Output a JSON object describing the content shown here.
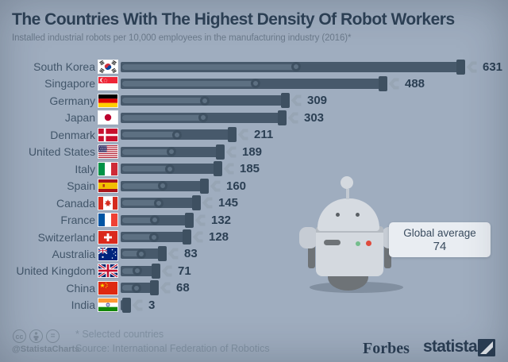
{
  "header": {
    "title": "The Countries With The Highest Density Of Robot Workers",
    "subtitle": "Installed industrial robots per 10,000 employees in the manufacturing industry (2016)*"
  },
  "chart_data": {
    "type": "bar",
    "orientation": "horizontal",
    "title": "The Countries With The Highest Density Of Robot Workers",
    "subtitle": "Installed industrial robots per 10,000 employees in the manufacturing industry (2016)*",
    "categories": [
      "South Korea",
      "Singapore",
      "Germany",
      "Japan",
      "Denmark",
      "United States",
      "Italy",
      "Spain",
      "Canada",
      "France",
      "Switzerland",
      "Australia",
      "United Kingdom",
      "China",
      "India"
    ],
    "values": [
      631,
      488,
      309,
      303,
      211,
      189,
      185,
      160,
      145,
      132,
      128,
      83,
      71,
      68,
      3
    ],
    "flags": [
      "kr",
      "sg",
      "de",
      "jp",
      "dk",
      "us",
      "it",
      "es",
      "ca",
      "fr",
      "ch",
      "au",
      "gb",
      "cn",
      "in"
    ],
    "xlim": [
      0,
      650
    ],
    "grid": false,
    "legend": null,
    "annotation": {
      "label": "Global average",
      "value": "74"
    },
    "bar_color": "#47596b",
    "bar_piston_color": "#5d7082",
    "bar_cap_color": "#3e5061",
    "claw_color": "#97a5b4"
  },
  "footer": {
    "icons": [
      "cc-icon",
      "attribution-icon",
      "no-derivatives-icon"
    ],
    "cc_glyph": "cc",
    "nd_glyph": "=",
    "handle": "@StatistaCharts",
    "footnote": "* Selected countries",
    "source": "Source: International Federation of Robotics",
    "brand_forbes": "Forbes",
    "brand_statista": "statista"
  },
  "colors": {
    "background": "#9fadbf",
    "title": "#2d4156",
    "subtitle": "#6b7a8b",
    "label": "#42566a",
    "value": "#2b3f53",
    "bubble_bg": "#e9edf2",
    "bubble_text": "#3a4c5f",
    "footer_text": "#8292a3",
    "brand": "#2b3e54"
  }
}
